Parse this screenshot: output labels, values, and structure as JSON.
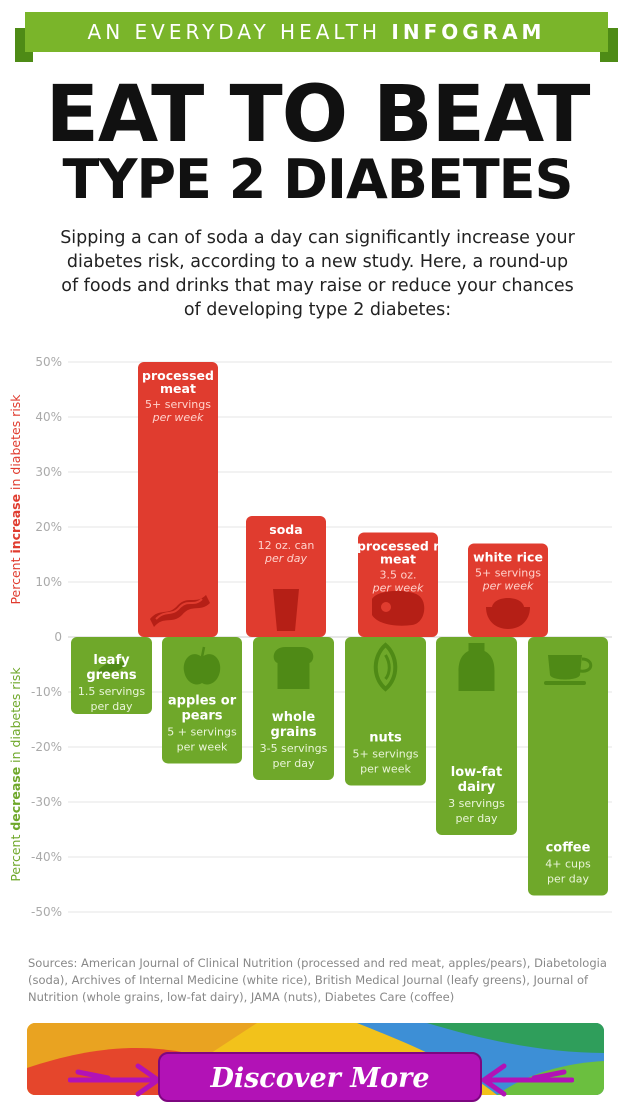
{
  "banner": {
    "prefix": "AN EVERYDAY HEALTH",
    "strong": "INFOGRAM"
  },
  "title": {
    "line1": "EAT TO BEAT",
    "line2": "TYPE 2 DIABETES"
  },
  "intro": "Sipping a can of soda a day can significantly increase your diabetes risk, according to a new study. Here, a round-up of foods and drinks that may raise or reduce your chances of developing type 2 diabetes:",
  "colors": {
    "increase": "#e03c2f",
    "decrease": "#6fa82a",
    "banner": "#7ab52a",
    "cta": "#b212b6"
  },
  "chart_data": {
    "type": "bar",
    "ylim": [
      -50,
      50
    ],
    "yticks": [
      "50%",
      "40%",
      "30%",
      "20%",
      "10%",
      "0",
      "-10%",
      "-20%",
      "-30%",
      "-40%",
      "-50%"
    ],
    "ylabel_increase": {
      "prefix": "Percent ",
      "strong": "increase",
      "suffix": " in diabetes risk"
    },
    "ylabel_decrease": {
      "prefix": "Percent ",
      "strong": "decrease",
      "suffix": " in diabetes risk"
    },
    "increase": [
      {
        "name": "processed meat",
        "serving1": "5+ servings",
        "serving2": "per week",
        "value": 50,
        "icon": "bacon-icon"
      },
      {
        "name": "soda",
        "serving1": "12 oz. can",
        "serving2": "per day",
        "value": 22,
        "icon": "cup-icon"
      },
      {
        "name": "unprocessed red meat",
        "serving1": "3.5 oz.",
        "serving2": "per week",
        "value": 19,
        "icon": "steak-icon"
      },
      {
        "name": "white rice",
        "serving1": "5+ servings",
        "serving2": "per week",
        "value": 17,
        "icon": "rice-bowl-icon"
      }
    ],
    "decrease": [
      {
        "name": "leafy greens",
        "serving1": "1.5 servings",
        "serving2": "per day",
        "value": -14,
        "icon": "leaf-icon"
      },
      {
        "name": "apples or pears",
        "serving1": "5 + servings",
        "serving2": "per week",
        "value": -23,
        "icon": "apple-icon"
      },
      {
        "name": "whole grains",
        "serving1": "3-5 servings",
        "serving2": "per day",
        "value": -26,
        "icon": "bread-icon"
      },
      {
        "name": "nuts",
        "serving1": "5+ servings",
        "serving2": "per week",
        "value": -27,
        "icon": "nut-icon"
      },
      {
        "name": "low-fat dairy",
        "serving1": "3 servings",
        "serving2": "per day",
        "value": -36,
        "icon": "milk-jug-icon"
      },
      {
        "name": "coffee",
        "serving1": "4+ cups",
        "serving2": "per day",
        "value": -47,
        "icon": "coffee-cup-icon"
      }
    ]
  },
  "sources": "Sources: American Journal of Clinical Nutrition (processed and red meat, apples/pears), Diabetologia (soda), Archives of Internal Medicine (white rice), British Medical Journal (leafy greens), Journal of Nutrition (whole grains, low-fat dairy), JAMA (nuts), Diabetes Care (coffee)",
  "cta": {
    "label": "Discover More"
  }
}
